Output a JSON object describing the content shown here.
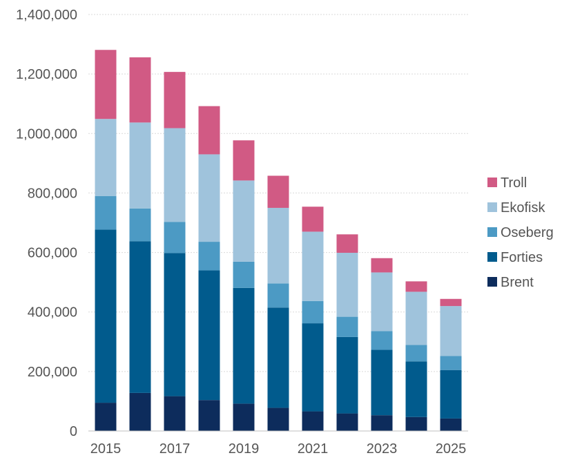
{
  "chart_data": {
    "type": "bar",
    "stacked": true,
    "title": "",
    "xlabel": "",
    "ylabel": "",
    "ylim": [
      0,
      1400000
    ],
    "yticks": [
      0,
      200000,
      400000,
      600000,
      800000,
      1000000,
      1200000,
      1400000
    ],
    "ytick_labels": [
      "0",
      "200,000",
      "400,000",
      "600,000",
      "800,000",
      "1,000,000",
      "1,200,000",
      "1,400,000"
    ],
    "categories": [
      "2015",
      "2016",
      "2017",
      "2018",
      "2019",
      "2020",
      "2021",
      "2022",
      "2023",
      "2024",
      "2025"
    ],
    "xtick_labels": [
      "2015",
      "",
      "2017",
      "",
      "2019",
      "",
      "2021",
      "",
      "2023",
      "",
      "2025"
    ],
    "grid": true,
    "legend_position": "right",
    "series": [
      {
        "name": "Brent",
        "color": "#0d2c5c",
        "values": [
          95000,
          128000,
          117000,
          104000,
          92000,
          78000,
          66000,
          59000,
          53000,
          47000,
          42000
        ]
      },
      {
        "name": "Forties",
        "color": "#015b8d",
        "values": [
          582000,
          510000,
          481000,
          436000,
          389000,
          337000,
          296000,
          257000,
          220000,
          187000,
          163000
        ]
      },
      {
        "name": "Oseberg",
        "color": "#4c9ac4",
        "values": [
          113000,
          110000,
          105000,
          96000,
          88000,
          81000,
          75000,
          68000,
          63000,
          55000,
          47000
        ]
      },
      {
        "name": "Ekofisk",
        "color": "#9fc3dc",
        "values": [
          259000,
          289000,
          315000,
          294000,
          273000,
          254000,
          233000,
          215000,
          197000,
          179000,
          168000
        ]
      },
      {
        "name": "Troll",
        "color": "#d15a84",
        "values": [
          232000,
          219000,
          189000,
          162000,
          135000,
          108000,
          84000,
          62000,
          48000,
          35000,
          24000
        ]
      }
    ],
    "legend_order": [
      "Troll",
      "Ekofisk",
      "Oseberg",
      "Forties",
      "Brent"
    ]
  }
}
